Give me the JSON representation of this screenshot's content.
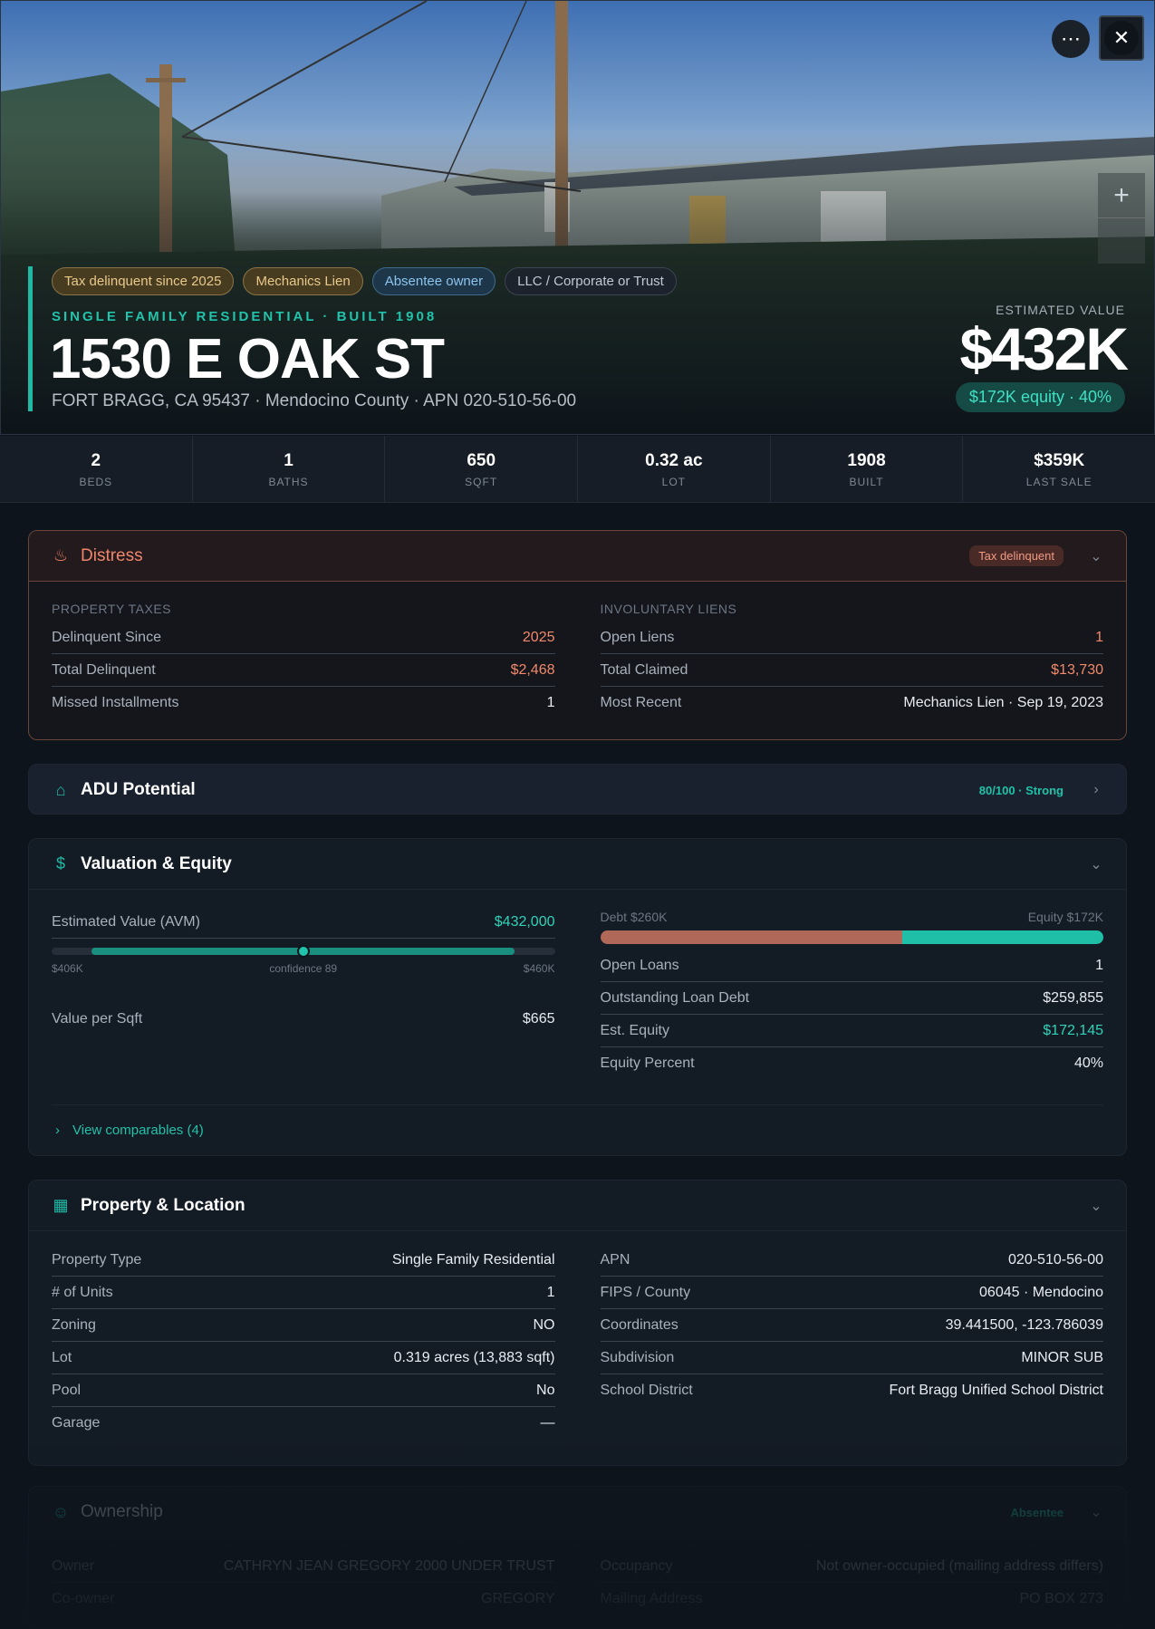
{
  "hero": {
    "tags": [
      "Tax delinquent since 2025",
      "Mechanics Lien",
      "Absentee owner",
      "LLC / Corporate or Trust"
    ],
    "subtitle": "SINGLE FAMILY RESIDENTIAL · BUILT 1908",
    "title": "1530 E OAK ST",
    "address": "FORT BRAGG, CA 95437 · Mendocino County · APN 020-510-56-00",
    "estimated_label": "ESTIMATED VALUE",
    "estimated_value": "$432K",
    "equity_pill": "$172K equity · 40%",
    "more_icon": "more-dots-icon",
    "close_icon": "close-icon",
    "zoom_in_icon": "plus-icon"
  },
  "stats": [
    {
      "value": "2",
      "label": "BEDS"
    },
    {
      "value": "1",
      "label": "BATHS"
    },
    {
      "value": "650",
      "label": "SQFT"
    },
    {
      "value": "0.32 ac",
      "label": "LOT"
    },
    {
      "value": "1908",
      "label": "BUILT"
    },
    {
      "value": "$359K",
      "label": "LAST SALE"
    }
  ],
  "distress": {
    "title": "Distress",
    "badge": "Tax delinquent",
    "taxes": {
      "label": "PROPERTY TAXES",
      "rows": [
        {
          "k": "Delinquent Since",
          "v": "2025"
        },
        {
          "k": "Total Delinquent",
          "v": "$2,468"
        },
        {
          "k": "Missed Installments",
          "v": "1"
        }
      ]
    },
    "liens": {
      "label": "INVOLUNTARY LIENS",
      "rows": [
        {
          "k": "Open Liens",
          "v": "1"
        },
        {
          "k": "Total Claimed",
          "v": "$13,730"
        },
        {
          "k": "Most Recent",
          "v": "Mechanics Lien · Sep 19, 2023"
        }
      ]
    }
  },
  "adu": {
    "title": "ADU Potential",
    "score": "80/100 · Strong",
    "score_value": 80
  },
  "valuation": {
    "title": "Valuation & Equity",
    "avm_label": "Estimated Value (AVM)",
    "avm_value": "$432,000",
    "range_low": "$406K",
    "range_high": "$460K",
    "confidence": "confidence 89",
    "vps_label": "Value per Sqft",
    "vps_value": "$665",
    "debt_label": "Debt $260K",
    "equity_label": "Equity $172K",
    "debt_fraction": 0.6,
    "rows": [
      {
        "k": "Open Loans",
        "v": "1"
      },
      {
        "k": "Outstanding Loan Debt",
        "v": "$259,855"
      },
      {
        "k": "Est. Equity",
        "v": "$172,145"
      },
      {
        "k": "Equity Percent",
        "v": "40%"
      }
    ],
    "comparables": "View comparables (4)"
  },
  "property": {
    "title": "Property & Location",
    "left": [
      {
        "k": "Property Type",
        "v": "Single Family Residential"
      },
      {
        "k": "# of Units",
        "v": "1"
      },
      {
        "k": "Zoning",
        "v": "NO"
      },
      {
        "k": "Lot",
        "v": "0.319 acres (13,883 sqft)"
      },
      {
        "k": "Pool",
        "v": "No"
      },
      {
        "k": "Garage",
        "v": "—"
      }
    ],
    "right": [
      {
        "k": "APN",
        "v": "020-510-56-00"
      },
      {
        "k": "FIPS / County",
        "v": "06045 · Mendocino"
      },
      {
        "k": "Coordinates",
        "v": "39.441500, -123.786039"
      },
      {
        "k": "Subdivision",
        "v": "MINOR SUB"
      },
      {
        "k": "School District",
        "v": "Fort Bragg Unified School District"
      }
    ]
  },
  "ownership": {
    "title": "Ownership",
    "badge": "Absentee",
    "rows_left": [
      {
        "k": "Owner",
        "v": "CATHRYN JEAN GREGORY 2000 UNDER TRUST"
      },
      {
        "k": "Co-owner",
        "v": "GREGORY"
      }
    ],
    "rows_right": [
      {
        "k": "Occupancy",
        "v": "Not owner-occupied (mailing address differs)"
      },
      {
        "k": "Mailing Address",
        "v": "PO BOX 273"
      }
    ]
  }
}
